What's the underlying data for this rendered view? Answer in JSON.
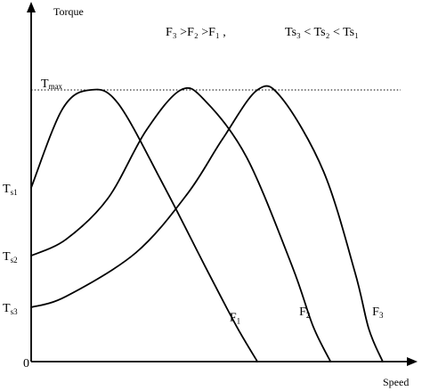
{
  "chart_data": {
    "type": "line",
    "title": "",
    "xlabel": "Speed",
    "ylabel": "Torque",
    "origin_label": "0",
    "ylim": [
      0,
      1
    ],
    "xlim": [
      0,
      1
    ],
    "grid": false,
    "max_line": {
      "label_main": "T",
      "label_sub": "max",
      "y": 1.0
    },
    "y_ticks": [
      {
        "main": "T",
        "sub": "s1",
        "y": 0.64
      },
      {
        "main": "T",
        "sub": "s2",
        "y": 0.39
      },
      {
        "main": "T",
        "sub": "s3",
        "y": 0.2
      }
    ],
    "relations": [
      "F₃ >F₂ >F₁ ,",
      "Ts₃ < Ts₂ < Ts₁"
    ],
    "series": [
      {
        "name": "F",
        "name_sub": "1",
        "points": [
          [
            0.0,
            0.64
          ],
          [
            0.09,
            0.93
          ],
          [
            0.17,
            1.0
          ],
          [
            0.25,
            0.95
          ],
          [
            0.38,
            0.65
          ],
          [
            0.5,
            0.35
          ],
          [
            0.59,
            0.13
          ],
          [
            0.65,
            0.0
          ]
        ]
      },
      {
        "name": "F",
        "name_sub": "2",
        "points": [
          [
            0.0,
            0.39
          ],
          [
            0.1,
            0.45
          ],
          [
            0.22,
            0.6
          ],
          [
            0.33,
            0.85
          ],
          [
            0.43,
            1.0
          ],
          [
            0.5,
            0.96
          ],
          [
            0.62,
            0.75
          ],
          [
            0.75,
            0.35
          ],
          [
            0.81,
            0.13
          ],
          [
            0.86,
            0.0
          ]
        ]
      },
      {
        "name": "F",
        "name_sub": "3",
        "points": [
          [
            0.0,
            0.2
          ],
          [
            0.1,
            0.24
          ],
          [
            0.3,
            0.4
          ],
          [
            0.45,
            0.62
          ],
          [
            0.55,
            0.82
          ],
          [
            0.65,
            1.0
          ],
          [
            0.72,
            0.97
          ],
          [
            0.84,
            0.7
          ],
          [
            0.93,
            0.33
          ],
          [
            0.97,
            0.12
          ],
          [
            1.01,
            0.0
          ]
        ]
      }
    ],
    "series_label_at": [
      {
        "x": 0.57,
        "y": 0.15
      },
      {
        "x": 0.77,
        "y": 0.17
      },
      {
        "x": 0.98,
        "y": 0.17
      }
    ]
  }
}
